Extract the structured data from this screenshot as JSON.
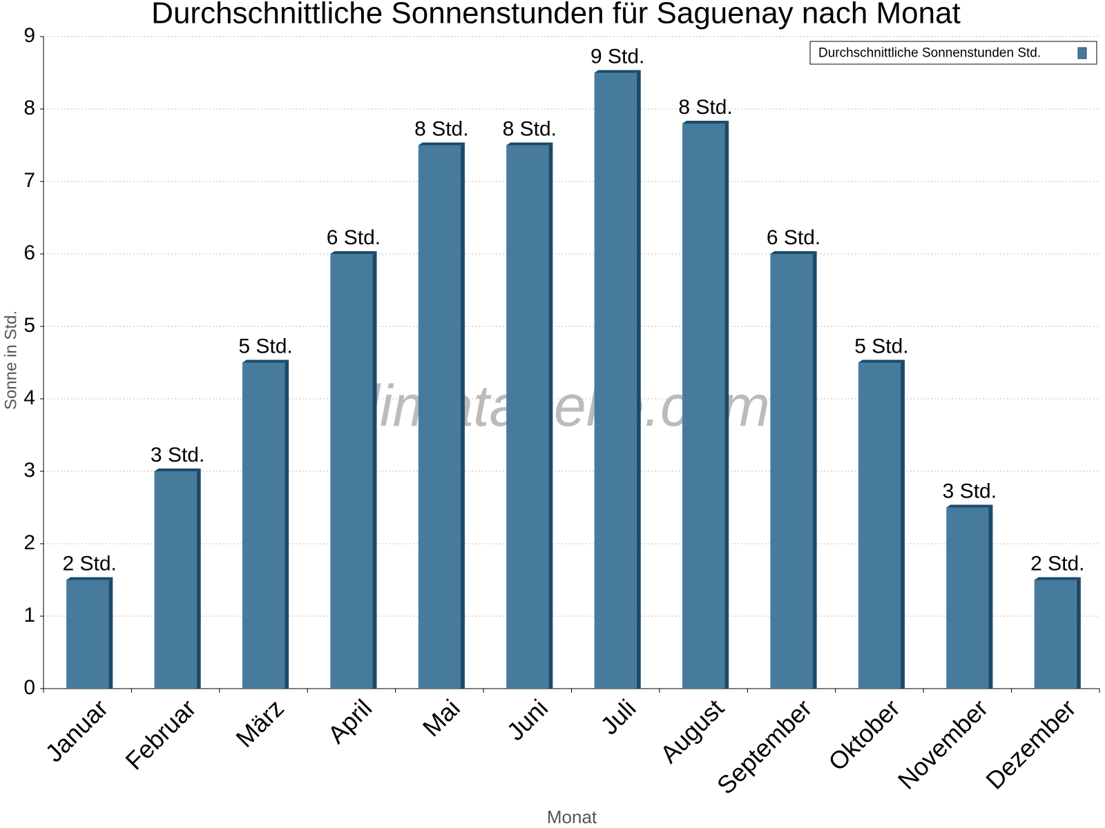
{
  "chart_data": {
    "type": "bar",
    "title": "Durchschnittliche Sonnenstunden für Saguenay nach Monat",
    "x_label": "Monat",
    "y_label": "Sonne in Std.",
    "watermark": "klimatabelle.com",
    "categories": [
      "Januar",
      "Februar",
      "März",
      "April",
      "Mai",
      "Juni",
      "Juli",
      "August",
      "September",
      "Oktober",
      "November",
      "Dezember"
    ],
    "series": [
      {
        "name": "Durchschnittliche Sonnenstunden Std.",
        "color": "#467b9d",
        "values": [
          1.5,
          3,
          4.5,
          6,
          7.5,
          7.5,
          8.5,
          7.8,
          6,
          4.5,
          2.5,
          1.5
        ],
        "value_labels": [
          "2 Std.",
          "3 Std.",
          "5 Std.",
          "6 Std.",
          "8 Std.",
          "8 Std.",
          "9 Std.",
          "8 Std.",
          "6 Std.",
          "5 Std.",
          "3 Std.",
          "2 Std."
        ]
      }
    ],
    "ylim": [
      0,
      9
    ],
    "yticks": [
      0,
      1,
      2,
      3,
      4,
      5,
      6,
      7,
      8,
      9
    ],
    "grid": true,
    "legend": "top-right"
  }
}
